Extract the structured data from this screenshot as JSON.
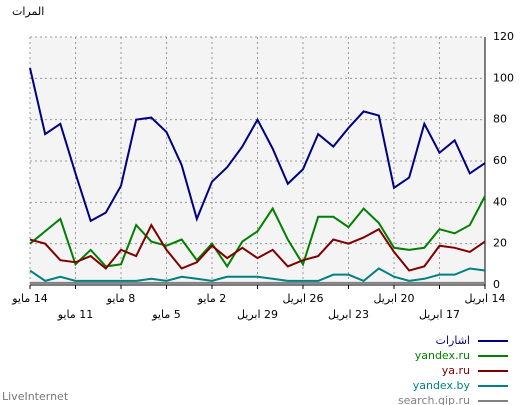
{
  "chart_data": {
    "type": "line",
    "y_label": "المرات",
    "brand": "LiveInternet",
    "categories": [
      "14 مايو",
      null,
      null,
      "11 مايو",
      null,
      null,
      "8 مايو",
      null,
      null,
      "5 مايو",
      null,
      null,
      "2 مايو",
      null,
      null,
      "29 ابريل",
      null,
      null,
      "26 ابريل",
      null,
      null,
      "23 ابريل",
      null,
      null,
      "20 ابريل",
      null,
      null,
      "17 ابريل",
      null,
      null,
      "14 ابريل"
    ],
    "series": [
      {
        "name": "اشارات",
        "color": "#000080",
        "values": [
          105,
          73,
          78,
          54,
          31,
          35,
          48,
          80,
          81,
          74,
          58,
          32,
          50,
          57,
          67,
          80,
          66,
          49,
          56,
          73,
          67,
          76,
          84,
          82,
          47,
          52,
          78,
          64,
          70,
          54,
          59
        ]
      },
      {
        "name": "yandex.ru",
        "color": "#008000",
        "values": [
          20,
          26,
          32,
          10,
          17,
          9,
          10,
          29,
          21,
          19,
          22,
          12,
          20,
          9,
          21,
          26,
          37,
          22,
          10,
          33,
          33,
          28,
          37,
          30,
          18,
          17,
          18,
          27,
          25,
          29,
          43
        ]
      },
      {
        "name": "ya.ru",
        "color": "#800000",
        "values": [
          22,
          20,
          12,
          11,
          14,
          8,
          17,
          14,
          29,
          17,
          8,
          11,
          19,
          13,
          18,
          13,
          17,
          9,
          12,
          14,
          22,
          20,
          23,
          27,
          16,
          7,
          9,
          19,
          18,
          16,
          21
        ]
      },
      {
        "name": "yandex.by",
        "color": "#008080",
        "values": [
          7,
          2,
          4,
          2,
          2,
          2,
          2,
          2,
          3,
          2,
          4,
          3,
          2,
          4,
          4,
          4,
          3,
          2,
          2,
          2,
          5,
          5,
          2,
          8,
          4,
          2,
          3,
          5,
          5,
          8,
          7
        ]
      },
      {
        "name": "search.qip.ru",
        "color": "#808080",
        "values": [
          1,
          1,
          1,
          1,
          1,
          1,
          1,
          1,
          1,
          1,
          1,
          1,
          1,
          1,
          1,
          1,
          1,
          1,
          1,
          1,
          1,
          1,
          1,
          1,
          1,
          1,
          1,
          1,
          1,
          1,
          1
        ]
      }
    ],
    "ylim": [
      0,
      120
    ],
    "yticks": [
      0,
      20,
      40,
      60,
      80,
      100,
      120
    ],
    "grid": true
  }
}
